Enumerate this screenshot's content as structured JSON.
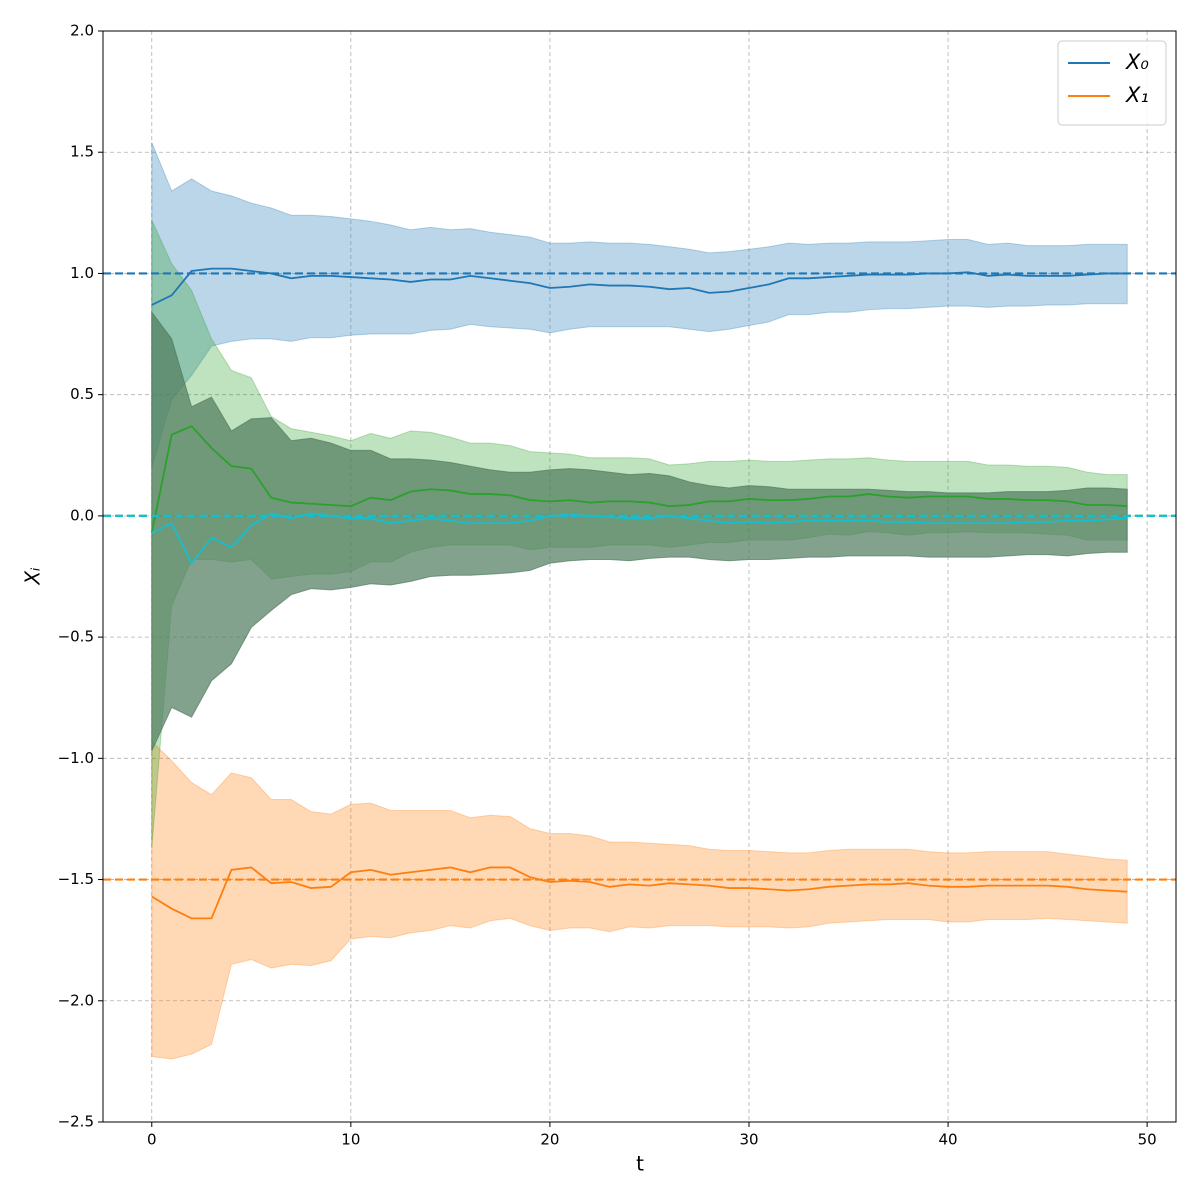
{
  "chart_data": {
    "type": "line",
    "xlabel": "t",
    "ylabel": "Xᵢ",
    "xlim": [
      -2.45,
      51.45
    ],
    "xticks": [
      0,
      10,
      20,
      30,
      40,
      50
    ],
    "ylim": [
      -2.5,
      2.0
    ],
    "yticks": [
      {
        "value": -2.5,
        "label": "−2.5"
      },
      {
        "value": -2.0,
        "label": "−2.0"
      },
      {
        "value": -1.5,
        "label": "−1.5"
      },
      {
        "value": -1.0,
        "label": "−1.0"
      },
      {
        "value": -0.5,
        "label": "−0.5"
      },
      {
        "value": 0,
        "label": "0.0"
      },
      0.5,
      {
        "value": 1,
        "label": "1.0"
      },
      1.5,
      {
        "value": 2,
        "label": "2.0"
      }
    ],
    "grid": true,
    "legend": "upper right",
    "x": [
      0,
      1,
      2,
      3,
      4,
      5,
      6,
      7,
      8,
      9,
      10,
      11,
      12,
      13,
      14,
      15,
      16,
      17,
      18,
      19,
      20,
      21,
      22,
      23,
      24,
      25,
      26,
      27,
      28,
      29,
      30,
      31,
      32,
      33,
      34,
      35,
      36,
      37,
      38,
      39,
      40,
      41,
      42,
      43,
      44,
      45,
      46,
      47,
      48,
      49
    ],
    "series": [
      {
        "name": "X₀",
        "color": "#1f77b4",
        "band_color": "#1f77b4",
        "band_opacity": 0.3,
        "values": [
          0.87,
          0.91,
          1.01,
          1.02,
          1.02,
          1.01,
          1.0,
          0.98,
          0.99,
          0.99,
          0.985,
          0.98,
          0.975,
          0.965,
          0.975,
          0.975,
          0.99,
          0.98,
          0.97,
          0.96,
          0.94,
          0.945,
          0.955,
          0.95,
          0.95,
          0.945,
          0.935,
          0.94,
          0.92,
          0.925,
          0.94,
          0.955,
          0.98,
          0.98,
          0.985,
          0.99,
          0.995,
          0.995,
          0.995,
          1.0,
          1.0,
          1.005,
          0.99,
          0.995,
          0.99,
          0.99,
          0.99,
          0.995,
          1.0,
          1.0
        ],
        "upper": [
          1.54,
          1.34,
          1.39,
          1.34,
          1.32,
          1.29,
          1.27,
          1.24,
          1.24,
          1.235,
          1.225,
          1.215,
          1.2,
          1.18,
          1.19,
          1.18,
          1.185,
          1.17,
          1.16,
          1.15,
          1.125,
          1.125,
          1.13,
          1.125,
          1.125,
          1.12,
          1.11,
          1.1,
          1.085,
          1.09,
          1.1,
          1.11,
          1.125,
          1.12,
          1.125,
          1.125,
          1.13,
          1.13,
          1.13,
          1.135,
          1.14,
          1.14,
          1.12,
          1.125,
          1.115,
          1.115,
          1.115,
          1.12,
          1.12,
          1.12
        ],
        "lower": [
          0.2,
          0.48,
          0.58,
          0.7,
          0.72,
          0.73,
          0.73,
          0.72,
          0.735,
          0.735,
          0.745,
          0.75,
          0.75,
          0.75,
          0.765,
          0.77,
          0.79,
          0.78,
          0.775,
          0.77,
          0.755,
          0.77,
          0.78,
          0.78,
          0.78,
          0.78,
          0.78,
          0.77,
          0.76,
          0.77,
          0.785,
          0.8,
          0.83,
          0.83,
          0.84,
          0.84,
          0.85,
          0.855,
          0.855,
          0.86,
          0.865,
          0.865,
          0.86,
          0.865,
          0.865,
          0.87,
          0.87,
          0.875,
          0.875,
          0.875
        ],
        "target": 1.0
      },
      {
        "name": "X₁",
        "color": "#ff7f0e",
        "band_color": "#ff7f0e",
        "band_opacity": 0.3,
        "values": [
          -1.57,
          -1.62,
          -1.66,
          -1.66,
          -1.46,
          -1.45,
          -1.515,
          -1.51,
          -1.535,
          -1.53,
          -1.47,
          -1.46,
          -1.48,
          -1.47,
          -1.46,
          -1.45,
          -1.47,
          -1.45,
          -1.45,
          -1.49,
          -1.51,
          -1.505,
          -1.51,
          -1.53,
          -1.52,
          -1.525,
          -1.515,
          -1.52,
          -1.525,
          -1.535,
          -1.535,
          -1.54,
          -1.545,
          -1.54,
          -1.53,
          -1.525,
          -1.52,
          -1.52,
          -1.515,
          -1.525,
          -1.53,
          -1.53,
          -1.525,
          -1.525,
          -1.525,
          -1.525,
          -1.53,
          -1.54,
          -1.545,
          -1.55
        ],
        "upper": [
          -0.93,
          -1.01,
          -1.1,
          -1.15,
          -1.06,
          -1.08,
          -1.17,
          -1.17,
          -1.22,
          -1.23,
          -1.19,
          -1.185,
          -1.215,
          -1.215,
          -1.215,
          -1.215,
          -1.245,
          -1.235,
          -1.24,
          -1.29,
          -1.31,
          -1.31,
          -1.32,
          -1.345,
          -1.345,
          -1.35,
          -1.355,
          -1.36,
          -1.375,
          -1.38,
          -1.38,
          -1.385,
          -1.39,
          -1.39,
          -1.38,
          -1.375,
          -1.375,
          -1.375,
          -1.375,
          -1.385,
          -1.39,
          -1.39,
          -1.385,
          -1.385,
          -1.385,
          -1.385,
          -1.395,
          -1.405,
          -1.415,
          -1.42
        ],
        "lower": [
          -2.23,
          -2.24,
          -2.22,
          -2.18,
          -1.85,
          -1.83,
          -1.865,
          -1.85,
          -1.855,
          -1.835,
          -1.745,
          -1.735,
          -1.74,
          -1.72,
          -1.71,
          -1.69,
          -1.7,
          -1.67,
          -1.66,
          -1.69,
          -1.71,
          -1.7,
          -1.7,
          -1.715,
          -1.695,
          -1.7,
          -1.69,
          -1.69,
          -1.69,
          -1.695,
          -1.695,
          -1.695,
          -1.7,
          -1.695,
          -1.68,
          -1.675,
          -1.67,
          -1.665,
          -1.665,
          -1.665,
          -1.675,
          -1.675,
          -1.665,
          -1.665,
          -1.665,
          -1.66,
          -1.665,
          -1.67,
          -1.675,
          -1.68
        ],
        "target": -1.5
      },
      {
        "color": "#2ca02c",
        "band_color": "#2ca02c",
        "band_opacity": 0.3,
        "values": [
          -0.07,
          0.335,
          0.37,
          0.28,
          0.205,
          0.195,
          0.075,
          0.055,
          0.05,
          0.045,
          0.04,
          0.075,
          0.065,
          0.1,
          0.11,
          0.105,
          0.09,
          0.09,
          0.085,
          0.065,
          0.06,
          0.065,
          0.055,
          0.06,
          0.06,
          0.055,
          0.04,
          0.045,
          0.06,
          0.06,
          0.07,
          0.065,
          0.065,
          0.07,
          0.08,
          0.08,
          0.09,
          0.08,
          0.075,
          0.08,
          0.08,
          0.08,
          0.07,
          0.07,
          0.065,
          0.065,
          0.06,
          0.045,
          0.045,
          0.04
        ],
        "upper": [
          1.22,
          1.04,
          0.93,
          0.73,
          0.6,
          0.57,
          0.41,
          0.36,
          0.345,
          0.33,
          0.31,
          0.34,
          0.32,
          0.35,
          0.345,
          0.325,
          0.3,
          0.3,
          0.29,
          0.265,
          0.26,
          0.255,
          0.24,
          0.24,
          0.24,
          0.235,
          0.21,
          0.215,
          0.225,
          0.225,
          0.23,
          0.225,
          0.225,
          0.23,
          0.235,
          0.235,
          0.24,
          0.23,
          0.225,
          0.225,
          0.225,
          0.225,
          0.21,
          0.21,
          0.205,
          0.205,
          0.2,
          0.18,
          0.17,
          0.17
        ],
        "lower": [
          -1.37,
          -0.37,
          -0.18,
          -0.18,
          -0.19,
          -0.18,
          -0.26,
          -0.25,
          -0.24,
          -0.24,
          -0.23,
          -0.19,
          -0.19,
          -0.15,
          -0.13,
          -0.12,
          -0.12,
          -0.12,
          -0.12,
          -0.14,
          -0.13,
          -0.13,
          -0.13,
          -0.12,
          -0.12,
          -0.12,
          -0.13,
          -0.12,
          -0.11,
          -0.11,
          -0.1,
          -0.1,
          -0.1,
          -0.09,
          -0.075,
          -0.08,
          -0.065,
          -0.07,
          -0.08,
          -0.07,
          -0.07,
          -0.065,
          -0.07,
          -0.07,
          -0.07,
          -0.075,
          -0.08,
          -0.1,
          -0.1,
          -0.1
        ],
        "target": 0
      },
      {
        "color": "#17becf",
        "band_color": "#4f7a5c",
        "band_opacity": 0.7,
        "values": [
          -0.07,
          -0.03,
          -0.195,
          -0.09,
          -0.13,
          -0.04,
          0.01,
          -0.01,
          0.01,
          0.0,
          -0.01,
          -0.01,
          -0.03,
          -0.02,
          -0.01,
          -0.02,
          -0.03,
          -0.03,
          -0.03,
          -0.02,
          0.0,
          0.005,
          0.0,
          -0.005,
          -0.01,
          -0.01,
          0.0,
          -0.01,
          -0.02,
          -0.03,
          -0.025,
          -0.03,
          -0.025,
          -0.02,
          -0.02,
          -0.02,
          -0.02,
          -0.025,
          -0.025,
          -0.03,
          -0.03,
          -0.03,
          -0.03,
          -0.03,
          -0.025,
          -0.025,
          -0.02,
          -0.02,
          -0.015,
          -0.01
        ],
        "upper": [
          0.84,
          0.73,
          0.45,
          0.49,
          0.35,
          0.4,
          0.405,
          0.31,
          0.32,
          0.3,
          0.27,
          0.27,
          0.235,
          0.235,
          0.23,
          0.22,
          0.205,
          0.19,
          0.18,
          0.18,
          0.19,
          0.195,
          0.19,
          0.18,
          0.17,
          0.175,
          0.165,
          0.14,
          0.125,
          0.115,
          0.125,
          0.12,
          0.11,
          0.11,
          0.11,
          0.11,
          0.11,
          0.105,
          0.1,
          0.1,
          0.095,
          0.095,
          0.095,
          0.1,
          0.1,
          0.1,
          0.105,
          0.115,
          0.115,
          0.11
        ],
        "lower": [
          -0.97,
          -0.79,
          -0.83,
          -0.68,
          -0.61,
          -0.46,
          -0.39,
          -0.325,
          -0.3,
          -0.305,
          -0.295,
          -0.28,
          -0.285,
          -0.27,
          -0.25,
          -0.245,
          -0.245,
          -0.24,
          -0.235,
          -0.225,
          -0.195,
          -0.185,
          -0.18,
          -0.18,
          -0.185,
          -0.175,
          -0.17,
          -0.17,
          -0.18,
          -0.185,
          -0.18,
          -0.18,
          -0.175,
          -0.17,
          -0.17,
          -0.165,
          -0.165,
          -0.165,
          -0.165,
          -0.17,
          -0.17,
          -0.17,
          -0.17,
          -0.165,
          -0.16,
          -0.16,
          -0.165,
          -0.155,
          -0.15,
          -0.15
        ],
        "target": 0
      }
    ]
  }
}
